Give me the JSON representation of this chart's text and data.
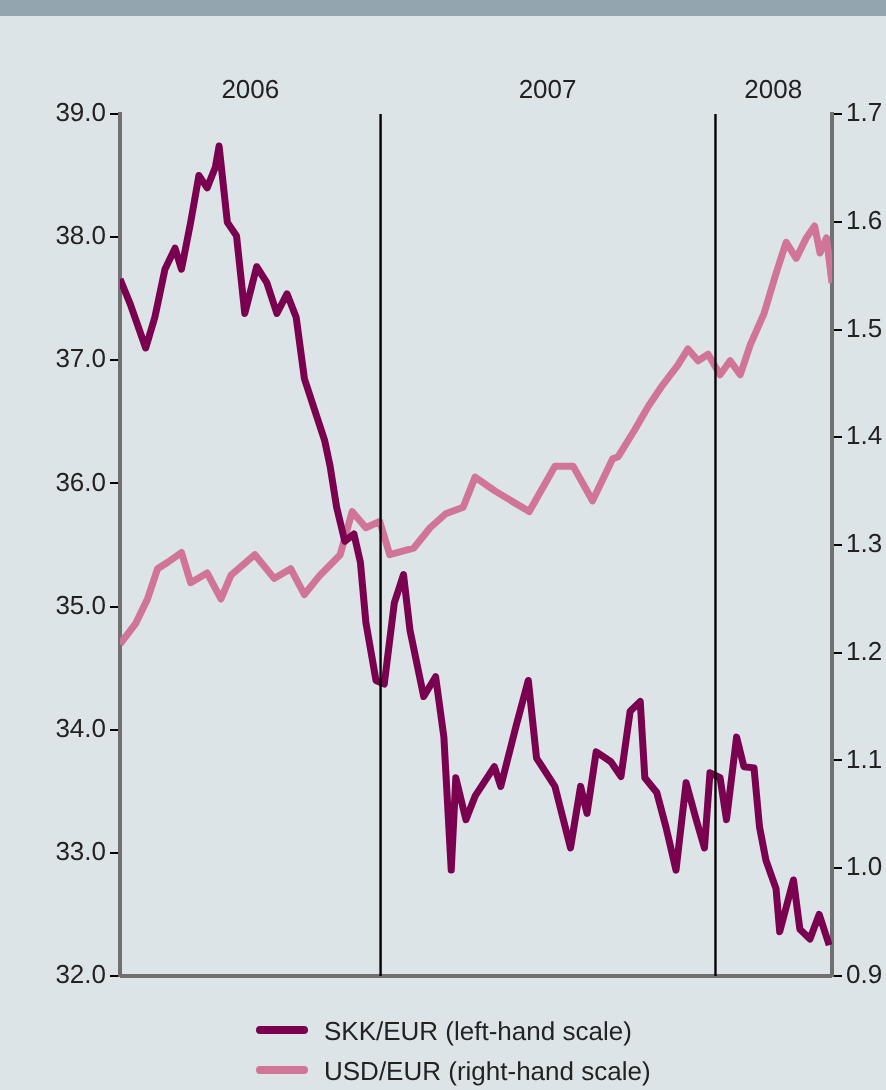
{
  "chart_data": {
    "type": "line",
    "xlim": [
      "2006-03-23",
      "2008-05-07"
    ],
    "xticks": [
      {
        "value": "2006-08-12",
        "label": "2006"
      },
      {
        "value": "2007-07-02",
        "label": "2007"
      },
      {
        "value": "2008-03-04",
        "label": "2008"
      }
    ],
    "ylim": [
      32,
      39
    ],
    "yticks": [
      {
        "value": 32,
        "label": "32.0"
      },
      {
        "value": 33,
        "label": "33.0"
      },
      {
        "value": 34,
        "label": "34.0"
      },
      {
        "value": 35,
        "label": "35.0"
      },
      {
        "value": 36,
        "label": "36.0"
      },
      {
        "value": 37,
        "label": "37.0"
      },
      {
        "value": 38,
        "label": "38.0"
      },
      {
        "value": 39,
        "label": "39.0"
      }
    ],
    "y2lim": [
      0.9,
      1.7
    ],
    "y2ticks": [
      0.9,
      {
        "value": 1,
        "label": "1.0"
      },
      1.1,
      1.2,
      1.3,
      1.4,
      1.5,
      1.6,
      1.7
    ],
    "grid": false,
    "legend": "bottom",
    "marker": "none",
    "line_style": "solid",
    "ref_lines": [
      {
        "axis": "x",
        "value": "2007-01-01",
        "color": "#000000"
      },
      {
        "axis": "x",
        "value": "2008-01-01",
        "color": "#000000"
      }
    ],
    "series": [
      {
        "name": "SKK/EUR (left-hand scale)",
        "color": "#7a0050",
        "x": [
          "2006-03-23",
          "2006-04-03",
          "2006-04-20",
          "2006-04-30",
          "2006-05-11",
          "2006-05-22",
          "2006-05-29",
          "2006-06-08",
          "2006-06-17",
          "2006-06-26",
          "2006-07-05",
          "2006-07-09",
          "2006-07-18",
          "2006-07-28",
          "2006-08-06",
          "2006-08-19",
          "2006-08-30",
          "2006-09-10",
          "2006-09-21",
          "2006-10-01",
          "2006-10-10",
          "2006-10-21",
          "2006-11-01",
          "2006-11-07",
          "2006-11-14",
          "2006-11-23",
          "2006-12-03",
          "2006-12-10",
          "2006-12-16",
          "2006-12-27",
          "2007-01-05",
          "2007-01-16",
          "2007-01-26",
          "2007-02-02",
          "2007-02-17",
          "2007-03-02",
          "2007-03-11",
          "2007-03-19",
          "2007-03-24",
          "2007-04-04",
          "2007-04-14",
          "2007-05-05",
          "2007-05-12",
          "2007-05-29",
          "2007-06-11",
          "2007-06-20",
          "2007-07-10",
          "2007-07-27",
          "2007-08-07",
          "2007-08-14",
          "2007-08-24",
          "2007-09-09",
          "2007-09-20",
          "2007-09-30",
          "2007-10-11",
          "2007-10-16",
          "2007-10-29",
          "2007-11-08",
          "2007-11-19",
          "2007-11-30",
          "2007-12-11",
          "2007-12-20",
          "2007-12-26",
          "2008-01-06",
          "2008-01-13",
          "2008-01-24",
          "2008-02-01",
          "2008-02-12",
          "2008-02-18",
          "2008-02-25",
          "2008-03-07",
          "2008-03-11",
          "2008-03-26",
          "2008-04-02",
          "2008-04-13",
          "2008-04-23",
          "2008-05-04"
        ],
        "values": [
          37.66,
          37.46,
          37.1,
          37.35,
          37.74,
          37.91,
          37.74,
          38.12,
          38.5,
          38.4,
          38.57,
          38.74,
          38.12,
          38.01,
          37.38,
          37.76,
          37.63,
          37.38,
          37.54,
          37.35,
          36.85,
          36.6,
          36.35,
          36.14,
          35.81,
          35.53,
          35.59,
          35.36,
          34.87,
          34.4,
          34.37,
          35.03,
          35.26,
          34.81,
          34.27,
          34.43,
          33.94,
          32.86,
          33.61,
          33.27,
          33.46,
          33.7,
          33.54,
          34.04,
          34.4,
          33.77,
          33.54,
          33.04,
          33.54,
          33.32,
          33.82,
          33.74,
          33.62,
          34.15,
          34.23,
          33.61,
          33.49,
          33.21,
          32.86,
          33.57,
          33.27,
          33.04,
          33.65,
          33.61,
          33.27,
          33.94,
          33.7,
          33.69,
          33.21,
          32.94,
          32.71,
          32.36,
          32.78,
          32.38,
          32.3,
          32.5,
          32.25
        ]
      },
      {
        "name": "USD/EUR (right-hand scale)",
        "color": "#d07498",
        "axis": "y2",
        "x": [
          "2006-03-23",
          "2006-04-09",
          "2006-04-22",
          "2006-05-03",
          "2006-05-14",
          "2006-05-29",
          "2006-06-08",
          "2006-06-26",
          "2006-07-11",
          "2006-07-22",
          "2006-08-17",
          "2006-09-07",
          "2006-09-25",
          "2006-10-10",
          "2006-10-27",
          "2006-11-18",
          "2006-12-01",
          "2006-12-16",
          "2006-12-31",
          "2007-01-11",
          "2007-02-06",
          "2007-02-24",
          "2007-03-13",
          "2007-04-01",
          "2007-04-14",
          "2007-05-06",
          "2007-06-12",
          "2007-07-10",
          "2007-07-30",
          "2007-08-20",
          "2007-09-11",
          "2007-09-17",
          "2007-10-05",
          "2007-10-20",
          "2007-11-04",
          "2007-11-21",
          "2007-12-02",
          "2007-12-13",
          "2007-12-24",
          "2008-01-06",
          "2008-01-17",
          "2008-01-28",
          "2008-02-08",
          "2008-02-23",
          "2008-03-07",
          "2008-03-18",
          "2008-03-29",
          "2008-04-09",
          "2008-04-18",
          "2008-04-24",
          "2008-05-01",
          "2008-05-07"
        ],
        "values": [
          1.208,
          1.227,
          1.25,
          1.278,
          1.284,
          1.293,
          1.265,
          1.274,
          1.25,
          1.272,
          1.291,
          1.269,
          1.278,
          1.254,
          1.272,
          1.291,
          1.331,
          1.316,
          1.322,
          1.291,
          1.297,
          1.316,
          1.329,
          1.335,
          1.363,
          1.35,
          1.331,
          1.373,
          1.373,
          1.341,
          1.38,
          1.382,
          1.407,
          1.429,
          1.448,
          1.467,
          1.482,
          1.471,
          1.477,
          1.458,
          1.471,
          1.458,
          1.486,
          1.515,
          1.552,
          1.581,
          1.566,
          1.585,
          1.596,
          1.571,
          1.585,
          1.543
        ]
      }
    ]
  }
}
